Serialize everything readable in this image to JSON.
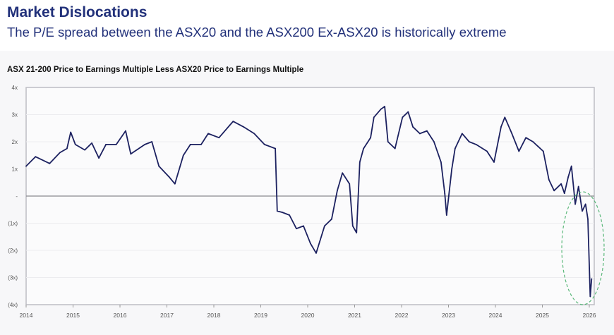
{
  "header": {
    "title": "Market Dislocations",
    "subtitle": "The P/E spread between the ASX20 and the ASX200 Ex-ASX20 is historically extreme"
  },
  "chart_data": {
    "type": "line",
    "title": "ASX 21-200 Price to Earnings Multiple Less ASX20 Price to Earnings Multiple",
    "xlabel": "",
    "ylabel": "",
    "xlim": [
      2014,
      2026.1
    ],
    "ylim": [
      -4,
      4
    ],
    "x_ticks": [
      "2014",
      "2015",
      "2016",
      "2017",
      "2018",
      "2019",
      "2020",
      "2021",
      "2022",
      "2023",
      "2024",
      "2025",
      "2026"
    ],
    "y_ticks": [
      {
        "value": 4,
        "label": "4x"
      },
      {
        "value": 3,
        "label": "3x"
      },
      {
        "value": 2,
        "label": "2x"
      },
      {
        "value": 1,
        "label": "1x"
      },
      {
        "value": 0,
        "label": "-"
      },
      {
        "value": -1,
        "label": "(1x)"
      },
      {
        "value": -2,
        "label": "(2x)"
      },
      {
        "value": -3,
        "label": "(3x)"
      },
      {
        "value": -4,
        "label": "(4x)"
      }
    ],
    "grid": true,
    "line_color": "#1c2160",
    "highlight_color": "#5bb87a",
    "series": [
      {
        "x": [
          2014.0,
          2014.2,
          2014.5,
          2014.72,
          2014.87,
          2014.95,
          2015.05,
          2015.25,
          2015.4,
          2015.55,
          2015.7,
          2015.92,
          2016.12,
          2016.23,
          2016.53,
          2016.68,
          2016.83,
          2017.05,
          2017.17,
          2017.35,
          2017.5,
          2017.73,
          2017.88,
          2018.11,
          2018.41,
          2018.63,
          2018.86,
          2019.08,
          2019.31,
          2019.35,
          2019.46,
          2019.61,
          2019.76,
          2019.91,
          2020.06,
          2020.18,
          2020.36,
          2020.51,
          2020.63,
          2020.74,
          2020.89,
          2020.96,
          2021.04,
          2021.11,
          2021.19,
          2021.34,
          2021.41,
          2021.56,
          2021.64,
          2021.71,
          2021.86,
          2022.02,
          2022.14,
          2022.24,
          2022.39,
          2022.54,
          2022.69,
          2022.84,
          2022.92,
          2022.96,
          2023.07,
          2023.14,
          2023.29,
          2023.44,
          2023.59,
          2023.82,
          2023.97,
          2024.12,
          2024.2,
          2024.35,
          2024.5,
          2024.65,
          2024.8,
          2025.02,
          2025.14,
          2025.25,
          2025.4,
          2025.47,
          2025.55,
          2025.62,
          2025.7,
          2025.77,
          2025.85,
          2025.92,
          2025.97,
          2026.02,
          2026.05
        ],
        "y": [
          1.1,
          1.45,
          1.2,
          1.6,
          1.75,
          2.35,
          1.9,
          1.7,
          1.95,
          1.4,
          1.9,
          1.9,
          2.4,
          1.55,
          1.9,
          2.0,
          1.1,
          0.7,
          0.45,
          1.5,
          1.9,
          1.9,
          2.3,
          2.15,
          2.75,
          2.55,
          2.3,
          1.9,
          1.75,
          -0.55,
          -0.6,
          -0.7,
          -1.2,
          -1.1,
          -1.75,
          -2.1,
          -1.1,
          -0.85,
          0.2,
          0.85,
          0.45,
          -1.1,
          -1.35,
          1.25,
          1.75,
          2.15,
          2.9,
          3.2,
          3.3,
          2.0,
          1.75,
          2.9,
          3.1,
          2.55,
          2.3,
          2.4,
          2.0,
          1.25,
          0.1,
          -0.7,
          1.0,
          1.75,
          2.3,
          2.0,
          1.9,
          1.65,
          1.25,
          2.55,
          2.9,
          2.3,
          1.65,
          2.15,
          2.0,
          1.65,
          0.6,
          0.2,
          0.45,
          0.1,
          0.7,
          1.1,
          -0.3,
          0.35,
          -0.55,
          -0.3,
          -0.85,
          -3.7,
          -3.05
        ]
      }
    ]
  }
}
